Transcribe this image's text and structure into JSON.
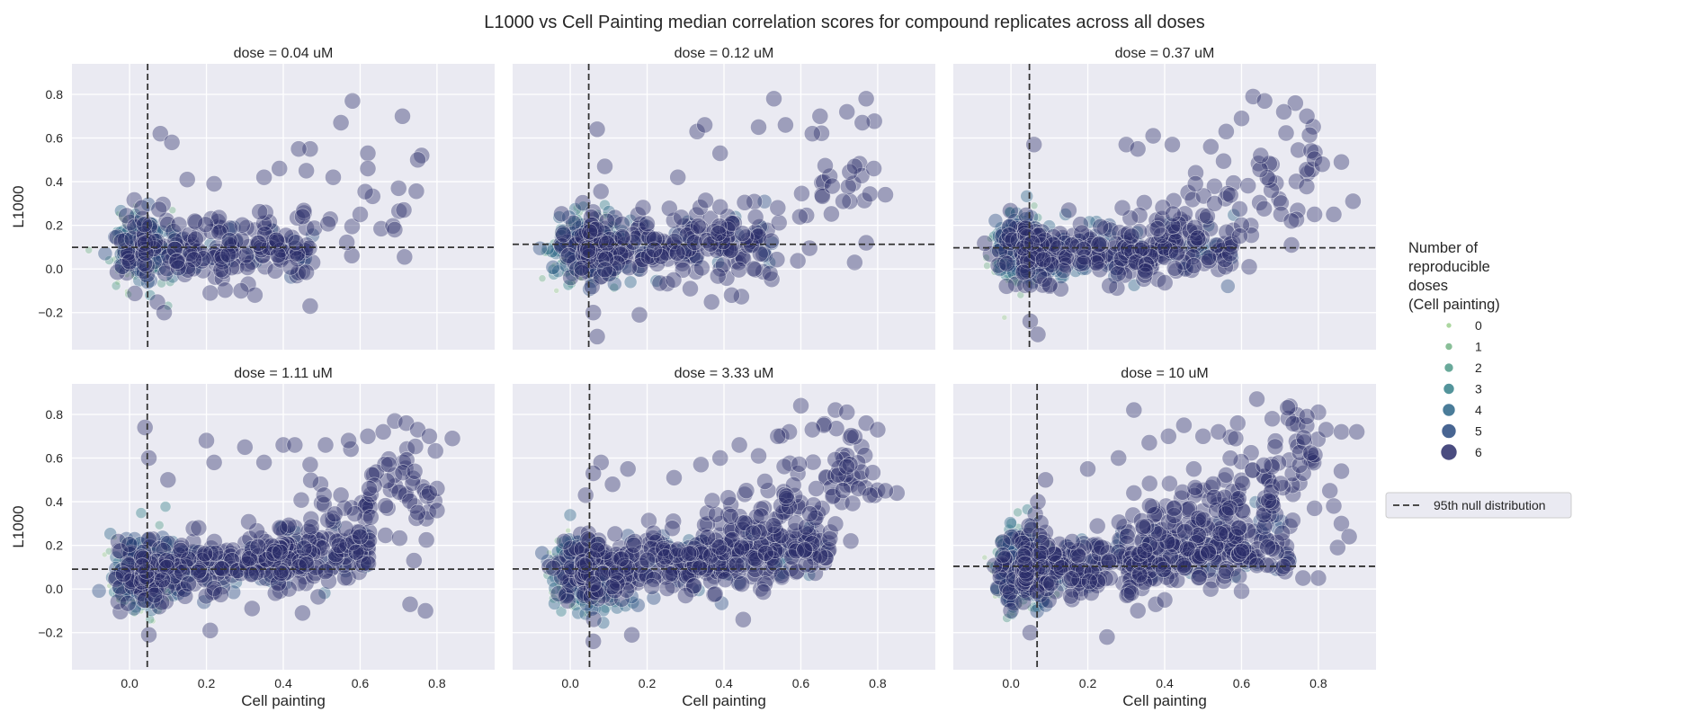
{
  "chart_data": {
    "type": "scatter",
    "title": "L1000 vs Cell Painting median correlation scores for compound replicates across all doses",
    "xlabel": "Cell painting",
    "ylabel": "L1000",
    "xlim": [
      -0.15,
      0.95
    ],
    "ylim": [
      -0.37,
      0.94
    ],
    "xticks": [
      "0.0",
      "0.2",
      "0.4",
      "0.6",
      "0.8"
    ],
    "yticks": [
      "−0.2",
      "0.0",
      "0.2",
      "0.4",
      "0.6",
      "0.8"
    ],
    "grid": true,
    "legend": {
      "title_lines": [
        "Number of",
        "reproducible",
        "doses",
        "(Cell painting)"
      ],
      "size_labels": [
        "0",
        "1",
        "2",
        "3",
        "4",
        "5",
        "6"
      ],
      "colors": [
        "#9dd08f",
        "#74b486",
        "#4f9a88",
        "#35818a",
        "#2a6587",
        "#284a7f",
        "#2a2d6a"
      ],
      "line_label": "95th null distribution",
      "placement": "right"
    },
    "panels": [
      {
        "title": "dose = 0.04 uM",
        "vline": 0.047,
        "hline": 0.099,
        "highlights": [
          [
            0.58,
            0.77
          ],
          [
            0.71,
            0.7
          ],
          [
            0.55,
            0.67
          ],
          [
            0.08,
            0.62
          ],
          [
            0.11,
            0.58
          ],
          [
            0.47,
            0.55
          ],
          [
            0.44,
            0.55
          ],
          [
            0.62,
            0.53
          ],
          [
            0.76,
            0.52
          ],
          [
            0.75,
            0.5
          ],
          [
            0.39,
            0.46
          ],
          [
            0.46,
            0.45
          ],
          [
            0.35,
            0.42
          ],
          [
            0.53,
            0.42
          ],
          [
            0.15,
            0.41
          ],
          [
            0.62,
            0.46
          ],
          [
            0.7,
            0.37
          ],
          [
            0.22,
            0.39
          ],
          [
            0.45,
            0.24
          ],
          [
            0.6,
            0.25
          ],
          [
            0.69,
            0.18
          ],
          [
            0.47,
            -0.17
          ],
          [
            0.09,
            -0.2
          ],
          [
            0.21,
            -0.11
          ],
          [
            0.29,
            -0.1
          ]
        ]
      },
      {
        "title": "dose = 0.12 uM",
        "vline": 0.048,
        "hline": 0.113,
        "highlights": [
          [
            0.53,
            0.78
          ],
          [
            0.77,
            0.78
          ],
          [
            0.72,
            0.72
          ],
          [
            0.65,
            0.7
          ],
          [
            0.76,
            0.67
          ],
          [
            0.56,
            0.66
          ],
          [
            0.49,
            0.65
          ],
          [
            0.33,
            0.63
          ],
          [
            0.35,
            0.66
          ],
          [
            0.63,
            0.62
          ],
          [
            0.07,
            0.64
          ],
          [
            0.39,
            0.53
          ],
          [
            0.79,
            0.46
          ],
          [
            0.74,
            0.47
          ],
          [
            0.82,
            0.34
          ],
          [
            0.09,
            0.47
          ],
          [
            0.28,
            0.42
          ],
          [
            0.54,
            0.28
          ],
          [
            0.71,
            0.31
          ],
          [
            0.77,
            0.12
          ],
          [
            0.74,
            0.03
          ],
          [
            0.06,
            -0.2
          ],
          [
            0.42,
            -0.12
          ],
          [
            0.07,
            -0.31
          ],
          [
            0.18,
            -0.21
          ]
        ]
      },
      {
        "title": "dose = 0.37 uM",
        "vline": 0.048,
        "hline": 0.097,
        "highlights": [
          [
            0.63,
            0.79
          ],
          [
            0.66,
            0.77
          ],
          [
            0.74,
            0.76
          ],
          [
            0.71,
            0.72
          ],
          [
            0.77,
            0.7
          ],
          [
            0.6,
            0.69
          ],
          [
            0.56,
            0.63
          ],
          [
            0.52,
            0.56
          ],
          [
            0.42,
            0.57
          ],
          [
            0.37,
            0.61
          ],
          [
            0.06,
            0.57
          ],
          [
            0.3,
            0.57
          ],
          [
            0.33,
            0.55
          ],
          [
            0.81,
            0.48
          ],
          [
            0.86,
            0.49
          ],
          [
            0.89,
            0.31
          ],
          [
            0.79,
            0.25
          ],
          [
            0.84,
            0.25
          ],
          [
            0.73,
            0.22
          ],
          [
            0.65,
            0.52
          ],
          [
            0.48,
            0.39
          ],
          [
            0.53,
            0.3
          ],
          [
            0.29,
            0.28
          ],
          [
            0.62,
            0.01
          ],
          [
            0.73,
            0.11
          ],
          [
            0.05,
            -0.24
          ],
          [
            0.07,
            -0.3
          ],
          [
            0.35,
            -0.01
          ],
          [
            0.57,
            0.07
          ]
        ]
      },
      {
        "title": "dose = 1.11 uM",
        "vline": 0.046,
        "hline": 0.091,
        "highlights": [
          [
            0.69,
            0.77
          ],
          [
            0.72,
            0.76
          ],
          [
            0.75,
            0.73
          ],
          [
            0.78,
            0.7
          ],
          [
            0.84,
            0.69
          ],
          [
            0.66,
            0.72
          ],
          [
            0.62,
            0.7
          ],
          [
            0.57,
            0.68
          ],
          [
            0.51,
            0.66
          ],
          [
            0.47,
            0.57
          ],
          [
            0.4,
            0.66
          ],
          [
            0.43,
            0.66
          ],
          [
            0.3,
            0.65
          ],
          [
            0.2,
            0.68
          ],
          [
            0.04,
            0.74
          ],
          [
            0.05,
            0.6
          ],
          [
            0.22,
            0.58
          ],
          [
            0.35,
            0.58
          ],
          [
            0.1,
            0.5
          ],
          [
            0.8,
            0.46
          ],
          [
            0.78,
            0.44
          ],
          [
            0.8,
            0.36
          ],
          [
            0.75,
            0.35
          ],
          [
            0.6,
            0.24
          ],
          [
            0.55,
            0.43
          ],
          [
            0.74,
            0.13
          ],
          [
            0.73,
            -0.07
          ],
          [
            0.77,
            -0.1
          ],
          [
            0.21,
            -0.19
          ],
          [
            0.05,
            -0.21
          ],
          [
            0.45,
            -0.11
          ]
        ]
      },
      {
        "title": "dose = 3.33 uM",
        "vline": 0.05,
        "hline": 0.092,
        "highlights": [
          [
            0.6,
            0.84
          ],
          [
            0.69,
            0.82
          ],
          [
            0.72,
            0.81
          ],
          [
            0.77,
            0.76
          ],
          [
            0.66,
            0.75
          ],
          [
            0.63,
            0.73
          ],
          [
            0.8,
            0.73
          ],
          [
            0.57,
            0.72
          ],
          [
            0.54,
            0.7
          ],
          [
            0.49,
            0.61
          ],
          [
            0.44,
            0.66
          ],
          [
            0.39,
            0.6
          ],
          [
            0.34,
            0.57
          ],
          [
            0.27,
            0.51
          ],
          [
            0.15,
            0.55
          ],
          [
            0.08,
            0.58
          ],
          [
            0.06,
            0.53
          ],
          [
            0.11,
            0.48
          ],
          [
            0.04,
            0.43
          ],
          [
            0.85,
            0.44
          ],
          [
            0.82,
            0.45
          ],
          [
            0.72,
            0.56
          ],
          [
            0.75,
            0.46
          ],
          [
            0.78,
            0.43
          ],
          [
            0.64,
            0.46
          ],
          [
            0.73,
            0.22
          ],
          [
            0.61,
            0.18
          ],
          [
            0.45,
            -0.14
          ],
          [
            0.06,
            -0.24
          ],
          [
            0.16,
            -0.21
          ],
          [
            0.3,
            -0.03
          ]
        ]
      },
      {
        "title": "dose = 10 uM",
        "vline": 0.068,
        "hline": 0.104,
        "highlights": [
          [
            0.64,
            0.87
          ],
          [
            0.72,
            0.83
          ],
          [
            0.8,
            0.81
          ],
          [
            0.77,
            0.79
          ],
          [
            0.68,
            0.78
          ],
          [
            0.59,
            0.76
          ],
          [
            0.54,
            0.72
          ],
          [
            0.5,
            0.7
          ],
          [
            0.82,
            0.73
          ],
          [
            0.86,
            0.72
          ],
          [
            0.9,
            0.72
          ],
          [
            0.32,
            0.82
          ],
          [
            0.45,
            0.75
          ],
          [
            0.41,
            0.7
          ],
          [
            0.36,
            0.67
          ],
          [
            0.28,
            0.6
          ],
          [
            0.2,
            0.55
          ],
          [
            0.09,
            0.5
          ],
          [
            0.07,
            0.4
          ],
          [
            0.86,
            0.54
          ],
          [
            0.83,
            0.45
          ],
          [
            0.84,
            0.38
          ],
          [
            0.86,
            0.3
          ],
          [
            0.88,
            0.24
          ],
          [
            0.79,
            0.37
          ],
          [
            0.85,
            0.19
          ],
          [
            0.8,
            0.05
          ],
          [
            0.76,
            0.05
          ],
          [
            0.25,
            -0.22
          ],
          [
            0.05,
            -0.2
          ],
          [
            0.4,
            -0.05
          ],
          [
            0.6,
            -0.01
          ],
          [
            0.32,
            0.44
          ]
        ]
      }
    ]
  }
}
